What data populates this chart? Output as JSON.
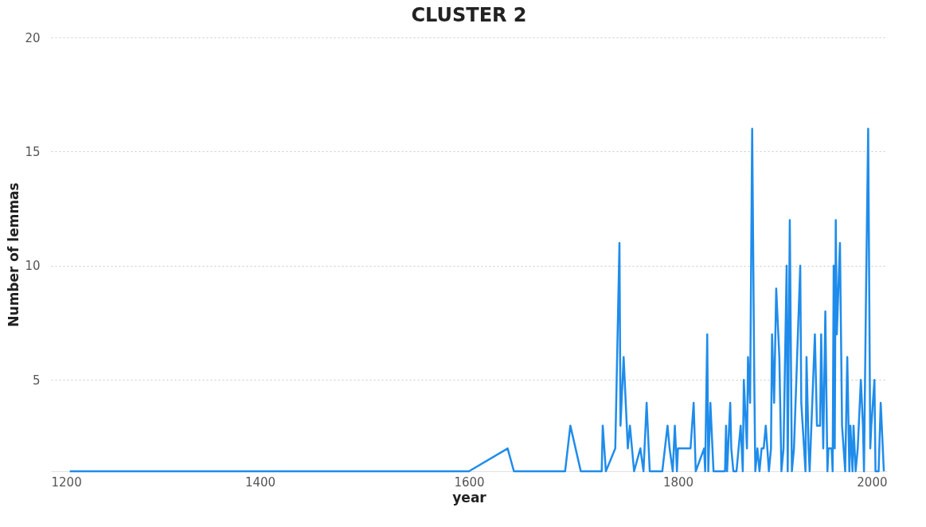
{
  "chart_data": {
    "type": "line",
    "title": "CLUSTER 2",
    "xlabel": "year",
    "ylabel": "Number of lemmas",
    "x": [
      1218,
      1600,
      1637,
      1643,
      1692,
      1697,
      1707,
      1727,
      1728,
      1731,
      1740,
      1744,
      1745,
      1748,
      1752,
      1754,
      1758,
      1764,
      1767,
      1770,
      1773,
      1785,
      1790,
      1792,
      1795,
      1797,
      1799,
      1800,
      1812,
      1815,
      1817,
      1825,
      1826,
      1828,
      1829,
      1831,
      1832,
      1834,
      1845,
      1846,
      1847,
      1850,
      1851,
      1853,
      1856,
      1860,
      1862,
      1863,
      1866,
      1867,
      1869,
      1871,
      1873,
      1874,
      1876,
      1878,
      1880,
      1882,
      1884,
      1887,
      1889,
      1890,
      1892,
      1894,
      1897,
      1899,
      1901,
      1904,
      1905,
      1907,
      1909,
      1911,
      1914,
      1917,
      1918,
      1922,
      1923,
      1925,
      1926,
      1931,
      1932,
      1933,
      1936,
      1937,
      1939,
      1941,
      1943,
      1944,
      1947,
      1948,
      1949,
      1950,
      1951,
      1952,
      1955,
      1957,
      1960,
      1962,
      1964,
      1965,
      1967,
      1968,
      1970,
      1972,
      1975,
      1977,
      1978,
      1980,
      1982,
      1984,
      1985,
      1988,
      1989,
      1992,
      1994,
      1997
    ],
    "series": [
      {
        "color": "#1f8ceb",
        "values": [
          1,
          1,
          2,
          1,
          1,
          3,
          1,
          1,
          3,
          1,
          2,
          11,
          3,
          6,
          2,
          3,
          1,
          2,
          1,
          4,
          1,
          1,
          3,
          2,
          1,
          3,
          1,
          2,
          2,
          4,
          1,
          2,
          1,
          7,
          1,
          4,
          3,
          1,
          1,
          3,
          1,
          4,
          2,
          1,
          1,
          3,
          1,
          5,
          2,
          6,
          4,
          16,
          5,
          1,
          2,
          1,
          2,
          2,
          3,
          1,
          2,
          7,
          4,
          9,
          6,
          1,
          2,
          10,
          1,
          12,
          1,
          2,
          6,
          10,
          4,
          1,
          6,
          2,
          1,
          7,
          5,
          3,
          3,
          7,
          2,
          8,
          1,
          2,
          2,
          1,
          10,
          2,
          12,
          7,
          11,
          3,
          1,
          6,
          1,
          3,
          1,
          3,
          1,
          2,
          5,
          3,
          1,
          9,
          16,
          2,
          3,
          5,
          1,
          1,
          4,
          1
        ]
      }
    ],
    "xlim": [
      1200,
      2000
    ],
    "xticks": [
      1200,
      1400,
      1600,
      1800,
      2000
    ],
    "ylim": [
      1,
      20
    ],
    "yticks": [
      5,
      10,
      15,
      20
    ],
    "grid": "y",
    "marker": "none",
    "line_style": "solid"
  }
}
